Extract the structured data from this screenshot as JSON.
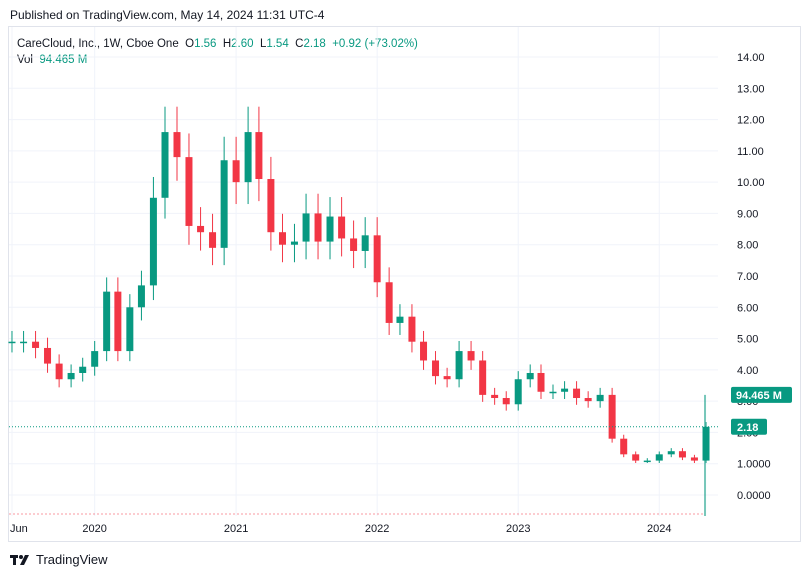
{
  "header": {
    "published": "Published on TradingView.com, May 14, 2024 11:31 UTC-4"
  },
  "legend": {
    "title": "CareCloud, Inc., 1W, Cboe One",
    "o_label": "O",
    "o_value": "1.56",
    "h_label": "H",
    "h_value": "2.60",
    "l_label": "L",
    "l_value": "1.54",
    "c_label": "C",
    "c_value": "2.18",
    "change": "+0.92 (+73.02%)",
    "vol_label": "Vol",
    "vol_value": "94.465 M"
  },
  "brand": {
    "text": "TradingView",
    "icon": "tradingview-logo-icon"
  },
  "colors": {
    "up": "#089981",
    "down": "#f23645",
    "grid": "#f0f3fa"
  },
  "chart_data": {
    "type": "candlestick",
    "title": "CareCloud, Inc., 1W, Cboe One",
    "y_ticks": [
      "14.00",
      "13.00",
      "12.00",
      "11.00",
      "10.00",
      "9.00",
      "8.00",
      "7.00",
      "6.00",
      "5.00",
      "4.00",
      "3.00",
      "2.00",
      "1.0000",
      "0.0000"
    ],
    "y_tick_values": [
      14,
      13,
      12,
      11,
      10,
      9,
      8,
      7,
      6,
      5,
      4,
      3,
      2,
      1,
      0
    ],
    "ylim": [
      -0.6,
      14.6
    ],
    "x_ticks": [
      "Jun",
      "2020",
      "2021",
      "2022",
      "2023",
      "2024"
    ],
    "x_tick_positions": [
      "2019-06",
      "2020-01",
      "2021-01",
      "2022-01",
      "2023-01",
      "2024-01"
    ],
    "last_price_label": "2.18",
    "volume_label": "94.465 M",
    "series": [
      {
        "date": "2019-06",
        "close": 4.9
      },
      {
        "date": "2019-07",
        "close": 4.9
      },
      {
        "date": "2019-08",
        "close": 4.7
      },
      {
        "date": "2019-09",
        "close": 4.2
      },
      {
        "date": "2019-10",
        "close": 3.7
      },
      {
        "date": "2019-11",
        "close": 3.9
      },
      {
        "date": "2019-12",
        "close": 4.1
      },
      {
        "date": "2020-01",
        "close": 4.6
      },
      {
        "date": "2020-02",
        "close": 6.5
      },
      {
        "date": "2020-03",
        "close": 4.6
      },
      {
        "date": "2020-04",
        "close": 6.0
      },
      {
        "date": "2020-05",
        "close": 6.7
      },
      {
        "date": "2020-06",
        "close": 9.5
      },
      {
        "date": "2020-07",
        "close": 11.6
      },
      {
        "date": "2020-08",
        "close": 10.8
      },
      {
        "date": "2020-09",
        "close": 8.6
      },
      {
        "date": "2020-10",
        "close": 8.4
      },
      {
        "date": "2020-11",
        "close": 7.9
      },
      {
        "date": "2020-12",
        "close": 10.7
      },
      {
        "date": "2021-01",
        "close": 10.0
      },
      {
        "date": "2021-02",
        "close": 11.6
      },
      {
        "date": "2021-03",
        "close": 10.1
      },
      {
        "date": "2021-04",
        "close": 8.4
      },
      {
        "date": "2021-05",
        "close": 8.0
      },
      {
        "date": "2021-06",
        "close": 8.1
      },
      {
        "date": "2021-07",
        "close": 9.0
      },
      {
        "date": "2021-08",
        "close": 8.1
      },
      {
        "date": "2021-09",
        "close": 8.9
      },
      {
        "date": "2021-10",
        "close": 8.2
      },
      {
        "date": "2021-11",
        "close": 7.8
      },
      {
        "date": "2021-12",
        "close": 8.3
      },
      {
        "date": "2022-01",
        "close": 6.8
      },
      {
        "date": "2022-02",
        "close": 5.5
      },
      {
        "date": "2022-03",
        "close": 5.7
      },
      {
        "date": "2022-04",
        "close": 4.9
      },
      {
        "date": "2022-05",
        "close": 4.3
      },
      {
        "date": "2022-06",
        "close": 3.8
      },
      {
        "date": "2022-07",
        "close": 3.7
      },
      {
        "date": "2022-08",
        "close": 4.6
      },
      {
        "date": "2022-09",
        "close": 4.3
      },
      {
        "date": "2022-10",
        "close": 3.2
      },
      {
        "date": "2022-11",
        "close": 3.1
      },
      {
        "date": "2022-12",
        "close": 2.9
      },
      {
        "date": "2023-01",
        "close": 3.7
      },
      {
        "date": "2023-02",
        "close": 3.9
      },
      {
        "date": "2023-03",
        "close": 3.3
      },
      {
        "date": "2023-04",
        "close": 3.3
      },
      {
        "date": "2023-05",
        "close": 3.4
      },
      {
        "date": "2023-06",
        "close": 3.1
      },
      {
        "date": "2023-07",
        "close": 3.0
      },
      {
        "date": "2023-08",
        "close": 3.2
      },
      {
        "date": "2023-09",
        "close": 1.8
      },
      {
        "date": "2023-10",
        "close": 1.3
      },
      {
        "date": "2023-11",
        "close": 1.1
      },
      {
        "date": "2023-12",
        "close": 1.1
      },
      {
        "date": "2024-01",
        "close": 1.3
      },
      {
        "date": "2024-02",
        "close": 1.4
      },
      {
        "date": "2024-03",
        "close": 1.2
      },
      {
        "date": "2024-04",
        "close": 1.1
      },
      {
        "date": "2024-05",
        "close": 2.18
      }
    ]
  }
}
